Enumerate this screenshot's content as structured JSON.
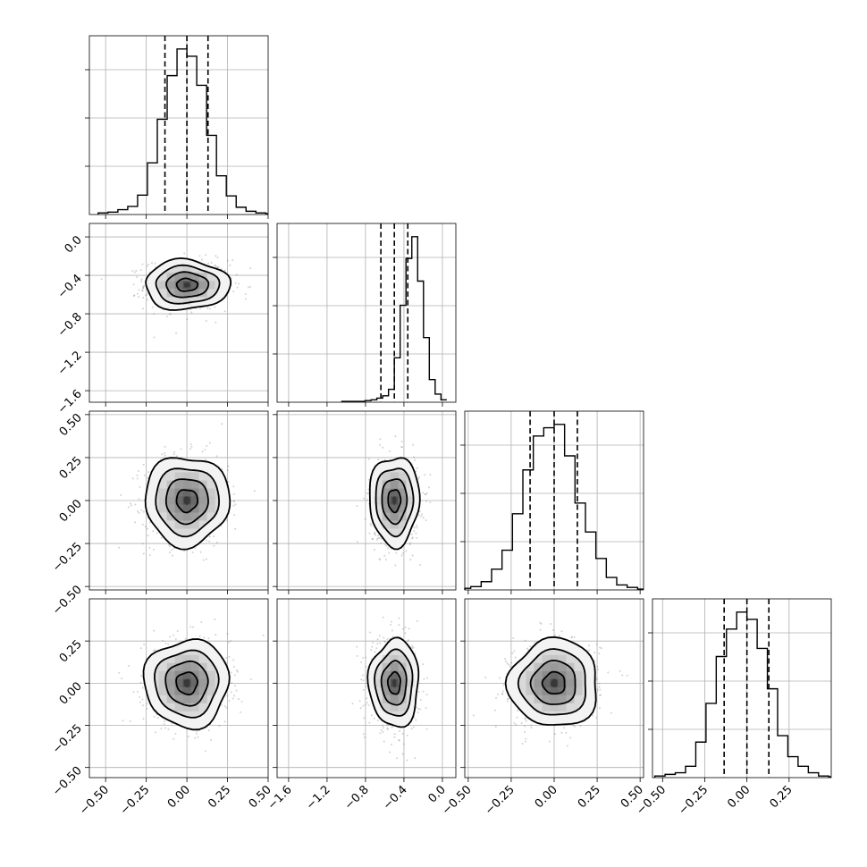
{
  "chart_data": {
    "type": "corner",
    "parameters": 4,
    "quantiles": [
      0.16,
      0.5,
      0.84
    ],
    "grid": true,
    "colors": {
      "lines": "#000000",
      "points": "#7f7f7f",
      "grid": "#b0b0b0"
    },
    "params": [
      {
        "lim": [
          -0.6,
          0.5
        ],
        "ticks": [
          -0.5,
          -0.25,
          0.0,
          0.25,
          0.5
        ],
        "tick_labels": [
          "−0.50",
          "−0.25",
          "0.00",
          "0.25",
          "0.50"
        ],
        "quantile_values": [
          -0.135,
          0.0,
          0.13
        ],
        "mean": 0.0,
        "sd": 0.13,
        "hist_counts": [
          2,
          3,
          6,
          10,
          24,
          64,
          118,
          172,
          205,
          196,
          160,
          98,
          48,
          23,
          9,
          4,
          2,
          1
        ]
      },
      {
        "lim": [
          -1.72,
          0.14
        ],
        "ticks": [
          -1.6,
          -1.2,
          -0.8,
          -0.4,
          0.0
        ],
        "tick_labels": [
          "−1.6",
          "−1.2",
          "−0.8",
          "−0.4",
          "0.0"
        ],
        "quantile_values": [
          -0.64,
          -0.5,
          -0.36
        ],
        "mean": -0.5,
        "sd": 0.13,
        "hist_counts": [
          1,
          1,
          1,
          1,
          2,
          3,
          5,
          8,
          16,
          55,
          120,
          178,
          205,
          150,
          80,
          28,
          10,
          3
        ]
      },
      {
        "lim": [
          -0.52,
          0.52
        ],
        "ticks": [
          -0.5,
          -0.25,
          0.0,
          0.25,
          0.5
        ],
        "tick_labels": [
          "−0.50",
          "−0.25",
          "0.00",
          "0.25",
          "0.50"
        ],
        "quantile_values": [
          -0.14,
          0.0,
          0.135
        ],
        "mean": 0.0,
        "sd": 0.13,
        "hist_counts": [
          2,
          4,
          10,
          25,
          48,
          92,
          145,
          186,
          196,
          200,
          162,
          105,
          70,
          38,
          15,
          6,
          3,
          1
        ]
      },
      {
        "lim": [
          -0.56,
          0.5
        ],
        "ticks": [
          -0.5,
          -0.25,
          0.0,
          0.25
        ],
        "tick_labels": [
          "−0.50",
          "−0.25",
          "0.00",
          "0.25"
        ],
        "quantile_values": [
          -0.135,
          0.0,
          0.13
        ],
        "mean": 0.0,
        "sd": 0.13,
        "hist_counts": [
          2,
          4,
          6,
          14,
          44,
          92,
          150,
          184,
          205,
          196,
          160,
          110,
          52,
          26,
          14,
          6,
          2,
          1
        ]
      }
    ],
    "correlations": [
      [
        1,
        0,
        0,
        0
      ],
      [
        0,
        1,
        0,
        0
      ],
      [
        0,
        0,
        1,
        0
      ],
      [
        0,
        0,
        0,
        1
      ]
    ]
  }
}
